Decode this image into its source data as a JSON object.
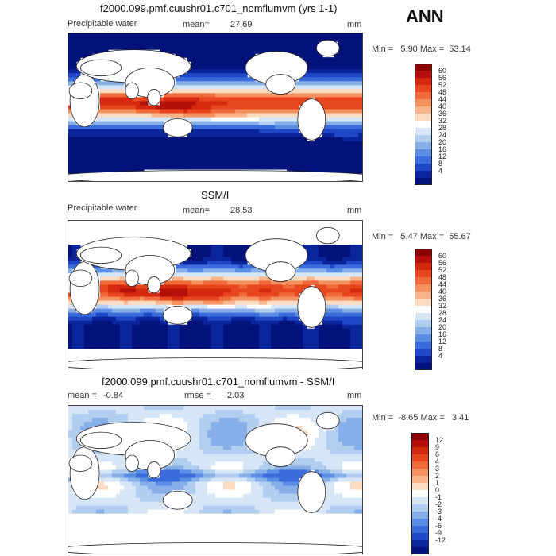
{
  "season": "ANN",
  "panels": [
    {
      "title": "f2000.099.pmf.cuushr01.c701_nomflumvm (yrs 1-1)",
      "field": "Precipitable water",
      "mean_label": "mean=",
      "mean_value": "27.69",
      "units": "mm",
      "min_label": "Min =",
      "min_value": "5.90",
      "max_label": "Max =",
      "max_value": "53.14",
      "colorbar": {
        "labels": [
          "60",
          "56",
          "52",
          "48",
          "44",
          "40",
          "36",
          "32",
          "28",
          "24",
          "20",
          "16",
          "12",
          "8",
          "4"
        ],
        "colors": [
          "#8b0000",
          "#b40f0a",
          "#d4290f",
          "#e8461e",
          "#f06a3c",
          "#f5905f",
          "#f9b48c",
          "#fcdcc0",
          "#ffffff",
          "#d6e6f7",
          "#b1cdf0",
          "#86aee9",
          "#5b8ee2",
          "#3a6cdb",
          "#1e48c8",
          "#0a249c",
          "#02127a"
        ]
      },
      "pattern": "pw"
    },
    {
      "title": "SSM/I",
      "field": "Precipitable water",
      "mean_label": "mean=",
      "mean_value": "28.53",
      "units": "mm",
      "min_label": "Min =",
      "min_value": "5.47",
      "max_label": "Max =",
      "max_value": "55.67",
      "colorbar": {
        "labels": [
          "60",
          "56",
          "52",
          "48",
          "44",
          "40",
          "36",
          "32",
          "28",
          "24",
          "20",
          "16",
          "12",
          "8",
          "4"
        ],
        "colors": [
          "#8b0000",
          "#b40f0a",
          "#d4290f",
          "#e8461e",
          "#f06a3c",
          "#f5905f",
          "#f9b48c",
          "#fcdcc0",
          "#ffffff",
          "#d6e6f7",
          "#b1cdf0",
          "#86aee9",
          "#5b8ee2",
          "#3a6cdb",
          "#1e48c8",
          "#0a249c",
          "#02127a"
        ]
      },
      "pattern": "obs"
    },
    {
      "title": "f2000.099.pmf.cuushr01.c701_nomflumvm - SSM/I",
      "mean_label": "mean =",
      "mean_value": "-0.84",
      "rmse_label": "rmse =",
      "rmse_value": "2.03",
      "units": "mm",
      "min_label": "Min =",
      "min_value": "-8.65",
      "max_label": "Max =",
      "max_value": "3.41",
      "colorbar": {
        "labels": [
          "12",
          "9",
          "6",
          "4",
          "3",
          "2",
          "1",
          "0",
          "-1",
          "-2",
          "-3",
          "-4",
          "-6",
          "-9",
          "-12"
        ],
        "colors": [
          "#8b0000",
          "#b40f0a",
          "#d4290f",
          "#e8461e",
          "#f06a3c",
          "#f5905f",
          "#f9b48c",
          "#fcdcc0",
          "#ffffff",
          "#d6e6f7",
          "#b1cdf0",
          "#86aee9",
          "#5b8ee2",
          "#3a6cdb",
          "#1e48c8",
          "#0a249c",
          "#02127a"
        ]
      },
      "pattern": "diff"
    }
  ]
}
